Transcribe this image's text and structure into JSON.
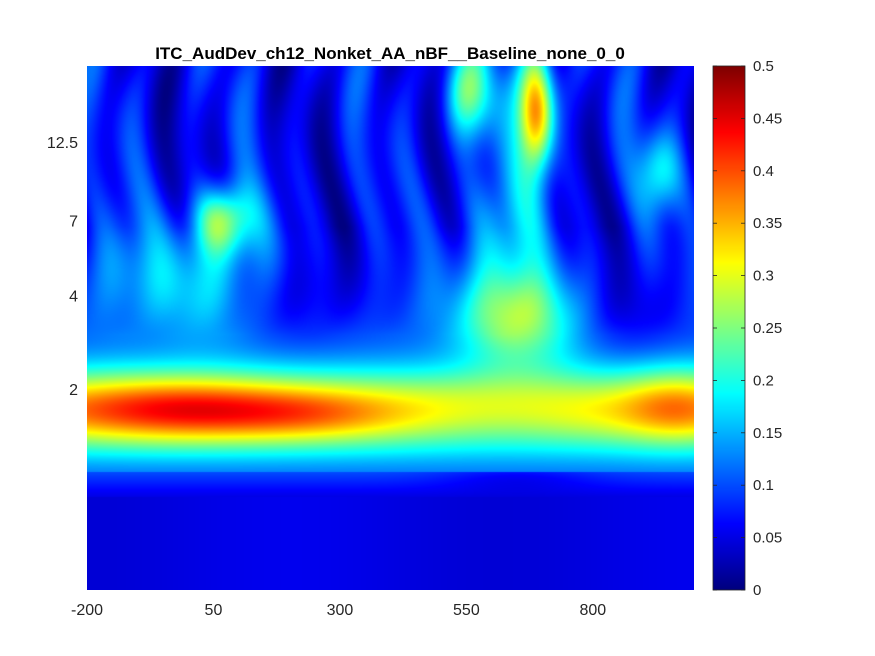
{
  "chart_data": {
    "type": "heatmap",
    "title": "ITC_AudDev_ch12_Nonket_AA_nBF__Baseline_none_0_0",
    "xlabel": "",
    "ylabel": "",
    "colormap": "jet",
    "xlim": [
      -200,
      1000
    ],
    "x_ticks": [
      "-200",
      "50",
      "300",
      "550",
      "800"
    ],
    "y_ticks": [
      "12.5",
      "7",
      "4",
      "2"
    ],
    "colorbar": {
      "min": 0,
      "max": 0.5,
      "ticks": [
        "0",
        "0.05",
        "0.1",
        "0.15",
        "0.2",
        "0.25",
        "0.3",
        "0.35",
        "0.4",
        "0.45",
        "0.5"
      ]
    },
    "features": [
      {
        "x": -110,
        "y": 2,
        "value": 0.36
      },
      {
        "x": 20,
        "y": 2,
        "value": 0.37
      },
      {
        "x": 200,
        "y": 2,
        "value": 0.37
      },
      {
        "x": 320,
        "y": 2,
        "value": 0.35
      },
      {
        "x": 960,
        "y": 2,
        "value": 0.36
      },
      {
        "x": 70,
        "y": 7,
        "value": 0.37
      },
      {
        "x": 660,
        "y": 4,
        "value": 0.34
      },
      {
        "x": 690,
        "y": 12.5,
        "value": 0.48
      },
      {
        "x": 660,
        "y": 25,
        "value": 0.44
      },
      {
        "x": 560,
        "y": 20,
        "value": 0.3
      },
      {
        "x": 930,
        "y": 10,
        "value": 0.28
      }
    ]
  }
}
